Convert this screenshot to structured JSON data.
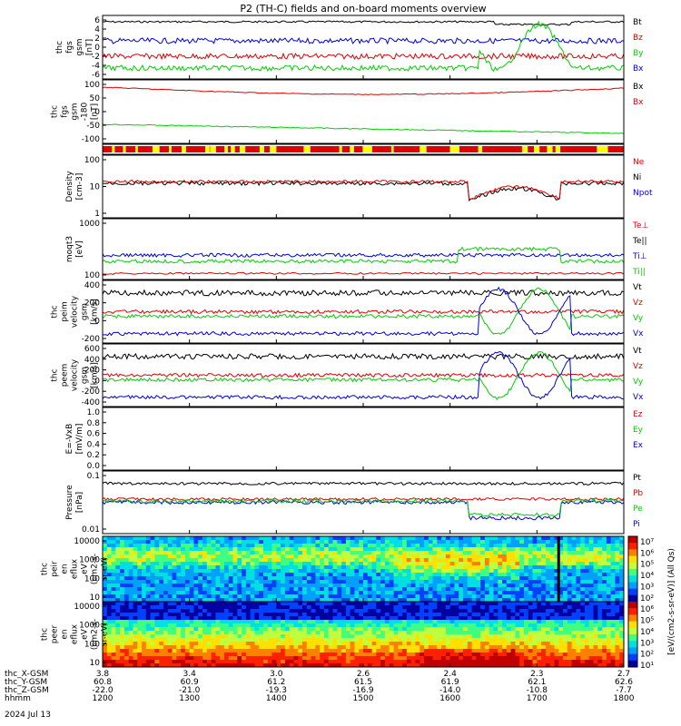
{
  "title": "P2 (TH-C) fields and on-board moments overview",
  "date": "2024 Jul 13",
  "colors": {
    "black": "#000000",
    "red": "#e00000",
    "green": "#00d000",
    "blue": "#0000e0",
    "yellow": "#ffff00"
  },
  "panels": [
    {
      "id": "fgs",
      "ylabel": [
        "thc",
        "fgs",
        "gsm",
        "[nT]"
      ],
      "yticks": [
        "6",
        "4",
        "2",
        "0",
        "-2",
        "-4",
        "-6"
      ],
      "legend": [
        {
          "t": "Bt",
          "c": "black"
        },
        {
          "t": "Bz",
          "c": "red"
        },
        {
          "t": "By",
          "c": "green"
        },
        {
          "t": "Bx",
          "c": "blue"
        }
      ]
    },
    {
      "id": "fgs_deg",
      "ylabel": [
        "thc",
        "fgs",
        "gsm",
        "-180",
        "[nT]"
      ],
      "yticks": [
        "100",
        "50",
        "0",
        "-50",
        "-100"
      ],
      "legend": [
        {
          "t": "Bx",
          "c": "black"
        },
        {
          "t": "Bx",
          "c": "red"
        }
      ]
    },
    {
      "id": "density",
      "ylabel": [
        "Density",
        "[cm-3]"
      ],
      "yticks": [
        "100",
        "10",
        "1"
      ],
      "legend": [
        {
          "t": "Ne",
          "c": "red"
        },
        {
          "t": "Ni",
          "c": "black"
        },
        {
          "t": "Npot",
          "c": "blue"
        }
      ]
    },
    {
      "id": "temp",
      "ylabel": [
        "moqt3",
        "[eV]"
      ],
      "yticks": [
        "1000",
        "100"
      ],
      "legend": [
        {
          "t": "Te⊥",
          "c": "red"
        },
        {
          "t": "Te||",
          "c": "black"
        },
        {
          "t": "Ti⊥",
          "c": "blue"
        },
        {
          "t": "Ti||",
          "c": "green"
        }
      ]
    },
    {
      "id": "vi",
      "ylabel": [
        "thc",
        "peim",
        "velocity",
        "gsm",
        "[km/s]"
      ],
      "yticks": [
        "400",
        "200",
        "0",
        "-200"
      ],
      "legend": [
        {
          "t": "Vt",
          "c": "black"
        },
        {
          "t": "Vz",
          "c": "red"
        },
        {
          "t": "Vy",
          "c": "green"
        },
        {
          "t": "Vx",
          "c": "blue"
        }
      ]
    },
    {
      "id": "ve",
      "ylabel": [
        "thc",
        "peem",
        "velocity",
        "gsm",
        "[km/s]"
      ],
      "yticks": [
        "600",
        "400",
        "200",
        "0",
        "-200",
        "-400"
      ],
      "legend": [
        {
          "t": "Vt",
          "c": "black"
        },
        {
          "t": "Vz",
          "c": "red"
        },
        {
          "t": "Vy",
          "c": "green"
        },
        {
          "t": "Vx",
          "c": "blue"
        }
      ]
    },
    {
      "id": "efield",
      "ylabel": [
        "E=-VxB",
        "[mV/m]"
      ],
      "yticks": [
        "1.0",
        "0.8",
        "0.6",
        "0.4",
        "0.2",
        "0.0"
      ],
      "legend": [
        {
          "t": "Ez",
          "c": "red"
        },
        {
          "t": "Ey",
          "c": "green"
        },
        {
          "t": "Ex",
          "c": "blue"
        }
      ]
    },
    {
      "id": "pressure",
      "ylabel": [
        "Pressure",
        "[nPa]"
      ],
      "yticks": [
        "0.1",
        "0.01"
      ],
      "legend": [
        {
          "t": "Pt",
          "c": "black"
        },
        {
          "t": "Pb",
          "c": "red"
        },
        {
          "t": "Pe",
          "c": "green"
        },
        {
          "t": "Pi",
          "c": "blue"
        }
      ]
    },
    {
      "id": "peir",
      "ylabel": [
        "thc",
        "peir",
        "en",
        "eflux",
        "eV",
        "(cm2-s-",
        "sr-eV)"
      ],
      "yticks": [
        "10000",
        "1000",
        "100",
        "10"
      ],
      "legend": []
    },
    {
      "id": "peer",
      "ylabel": [
        "thc",
        "peer",
        "en",
        "eflux",
        "eV",
        "(cm2-s-",
        "sr-eV)"
      ],
      "yticks": [
        "10000",
        "1000",
        "100",
        "10"
      ],
      "legend": []
    }
  ],
  "colorbar": {
    "ticks": [
      "10⁷",
      "10⁶",
      "10⁵",
      "10⁴",
      "10³",
      "10²",
      "10⁶",
      "10⁵",
      "10⁴",
      "10³",
      "10²",
      "10¹"
    ],
    "label": "[eV/(cm2-s-sr-eV)] (All Qs)"
  },
  "xaxis": {
    "rows": [
      {
        "label": "thc_X-GSM",
        "values": [
          "3.8",
          "3.4",
          "3.0",
          "2.6",
          "2.4",
          "2.3",
          "2.7"
        ]
      },
      {
        "label": "thc_Y-GSM",
        "values": [
          "60.8",
          "60.9",
          "61.2",
          "61.5",
          "61.9",
          "62.1",
          "62.6"
        ]
      },
      {
        "label": "thc_Z-GSM",
        "values": [
          "-22.0",
          "-21.0",
          "-19.3",
          "-16.9",
          "-14.0",
          "-10.8",
          "-7.7"
        ]
      },
      {
        "label": "hhmm",
        "values": [
          "1200",
          "1300",
          "1400",
          "1500",
          "1600",
          "1700",
          "1800"
        ]
      }
    ]
  },
  "chart_data": {
    "type": "line",
    "time_axis": {
      "label": "hhmm",
      "ticks": [
        "1200",
        "1300",
        "1400",
        "1500",
        "1600",
        "1700",
        "1800"
      ],
      "date": "2024 Jul 13"
    },
    "series_note": "Mixed line panels and two energy-flux spectrograms (peir, peer)."
  }
}
